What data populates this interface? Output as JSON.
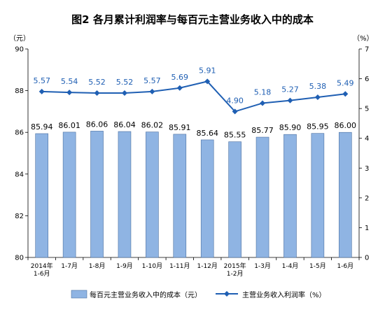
{
  "chart_data": {
    "type": "bar",
    "title": "图2  各月累计利润率与每百元主营业务收入中的成本",
    "left_unit": "（元）",
    "right_unit": "（%）",
    "categories": [
      [
        "2014年",
        "1-6月"
      ],
      [
        "1-7月"
      ],
      [
        "1-8月"
      ],
      [
        "1-9月"
      ],
      [
        "1-10月"
      ],
      [
        "1-11月"
      ],
      [
        "1-12月"
      ],
      [
        "2015年",
        "1-2月"
      ],
      [
        "1-3月"
      ],
      [
        "1-4月"
      ],
      [
        "1-5月"
      ],
      [
        "1-6月"
      ]
    ],
    "ylim_left": [
      80,
      90
    ],
    "yticks_left": [
      80,
      82,
      84,
      86,
      88,
      90
    ],
    "ylim_right": [
      0,
      7
    ],
    "yticks_right": [
      0,
      1,
      2,
      3,
      4,
      5,
      6,
      7
    ],
    "series": [
      {
        "name": "每百元主营业务收入中的成本（元）",
        "type": "bar",
        "axis": "left",
        "color": "#8fb4e3",
        "values": [
          85.94,
          86.01,
          86.06,
          86.04,
          86.02,
          85.91,
          85.64,
          85.55,
          85.77,
          85.9,
          85.95,
          86.0
        ],
        "labels": [
          "85.94",
          "86.01",
          "86.06",
          "86.04",
          "86.02",
          "85.91",
          "85.64",
          "85.55",
          "85.77",
          "85.90",
          "85.95",
          "86.00"
        ]
      },
      {
        "name": "主营业务收入利润率（%）",
        "type": "line",
        "axis": "right",
        "color": "#1f5fb3",
        "values": [
          5.57,
          5.54,
          5.52,
          5.52,
          5.57,
          5.69,
          5.91,
          4.9,
          5.18,
          5.27,
          5.38,
          5.49
        ],
        "labels": [
          "5.57",
          "5.54",
          "5.52",
          "5.52",
          "5.57",
          "5.69",
          "5.91",
          "4.90",
          "5.18",
          "5.27",
          "5.38",
          "5.49"
        ]
      }
    ],
    "grid": false,
    "legend": "bottom"
  }
}
